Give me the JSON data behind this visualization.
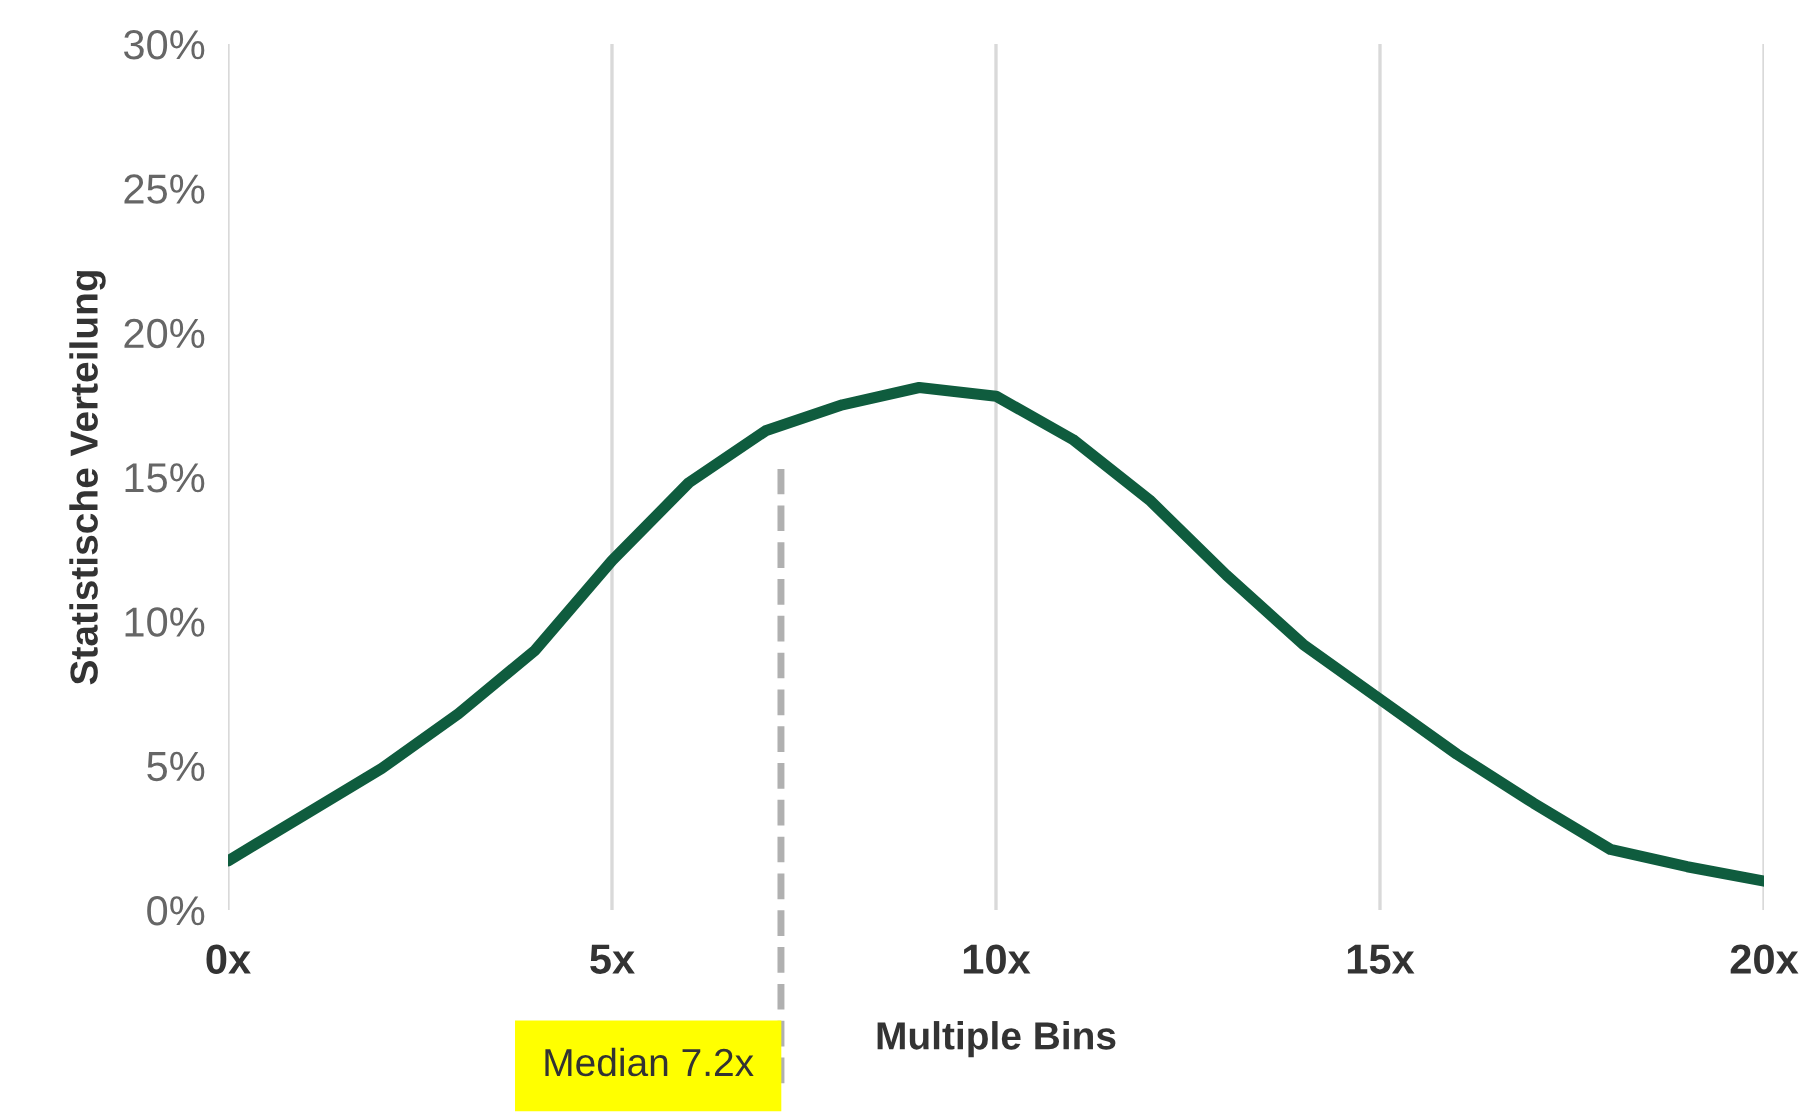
{
  "chart_data": {
    "type": "line",
    "xlabel": "Multiple Bins",
    "ylabel": "Statistische Verteilung",
    "xlim": [
      0,
      20
    ],
    "ylim": [
      0,
      30
    ],
    "xticks": [
      {
        "value": 0,
        "label": "0x"
      },
      {
        "value": 5,
        "label": "5x"
      },
      {
        "value": 10,
        "label": "10x"
      },
      {
        "value": 15,
        "label": "15x"
      },
      {
        "value": 20,
        "label": "20x"
      }
    ],
    "yticks": [
      {
        "value": 0,
        "label": "0%"
      },
      {
        "value": 5,
        "label": "5%"
      },
      {
        "value": 10,
        "label": "10%"
      },
      {
        "value": 15,
        "label": "15%"
      },
      {
        "value": 20,
        "label": "20%"
      },
      {
        "value": 25,
        "label": "25%"
      },
      {
        "value": 30,
        "label": "30%"
      }
    ],
    "grid": "x",
    "legend": false,
    "marker": "none",
    "line_style": "solid",
    "series": [
      {
        "color": "#0f5c3e",
        "x": [
          0,
          1,
          2,
          3,
          4,
          5,
          6,
          7,
          8,
          9,
          10,
          11,
          12,
          13,
          14,
          15,
          16,
          17,
          18,
          19,
          20
        ],
        "values": [
          1.7,
          3.3,
          4.9,
          6.8,
          9.0,
          12.1,
          14.8,
          16.6,
          17.5,
          18.1,
          17.8,
          16.3,
          14.2,
          11.6,
          9.2,
          7.3,
          5.4,
          3.7,
          2.1,
          1.5,
          1.0
        ]
      }
    ],
    "ref_lines": [
      {
        "axis": "x",
        "value": 7.2,
        "label": "Median 7.2x",
        "color": "#b0b0b0",
        "line_style": "dashed"
      }
    ]
  }
}
